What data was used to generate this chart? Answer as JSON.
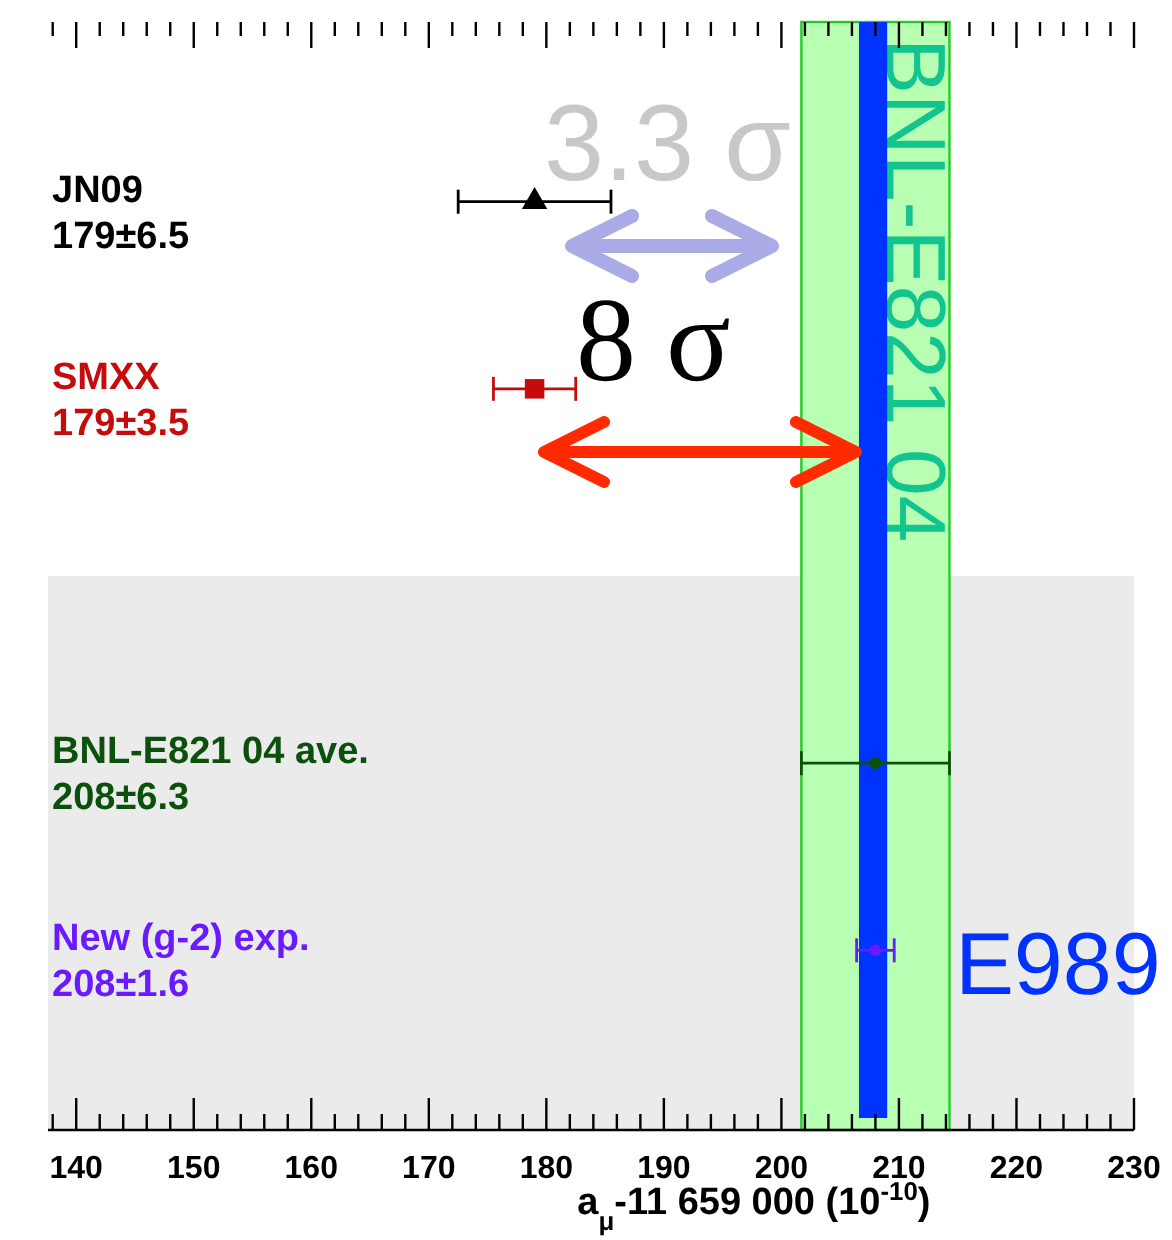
{
  "chart_data": {
    "type": "scatter",
    "orientation": "horizontal",
    "categories": [
      "JN09\n179±6.5",
      "SMXX\n179±3.5",
      null,
      "BNL-E821 04 ave.\n208±6.3",
      "New (g-2) exp.\n208±1.6"
    ],
    "series": [
      {
        "color": "#000000",
        "marker": "triangle",
        "values": [
          179,
          null,
          null,
          null,
          null
        ],
        "errors": [
          6.5,
          null,
          null,
          null,
          null
        ]
      },
      {
        "color": "#c40c0c",
        "marker": "square",
        "values": [
          null,
          179,
          null,
          null,
          null
        ],
        "errors": [
          null,
          3.5,
          null,
          null,
          null
        ]
      },
      {
        "color": "#0b500b",
        "marker": "circle",
        "values": [
          null,
          null,
          null,
          208,
          null
        ],
        "errors": [
          null,
          null,
          null,
          6.3,
          null
        ]
      },
      {
        "color": "#6a1aff",
        "marker": "circle",
        "values": [
          null,
          null,
          null,
          null,
          208
        ],
        "errors": [
          null,
          null,
          null,
          null,
          1.6
        ]
      }
    ],
    "xlim": [
      137.6,
      230
    ],
    "xticks": [
      {
        "value": 138,
        "label": null
      },
      140,
      {
        "value": 142,
        "label": null
      },
      {
        "value": 144,
        "label": null
      },
      {
        "value": 146,
        "label": null
      },
      {
        "value": 148,
        "label": null
      },
      150,
      {
        "value": 152,
        "label": null
      },
      {
        "value": 154,
        "label": null
      },
      {
        "value": 156,
        "label": null
      },
      {
        "value": 158,
        "label": null
      },
      160,
      {
        "value": 162,
        "label": null
      },
      {
        "value": 164,
        "label": null
      },
      {
        "value": 166,
        "label": null
      },
      {
        "value": 168,
        "label": null
      },
      170,
      {
        "value": 172,
        "label": null
      },
      {
        "value": 174,
        "label": null
      },
      {
        "value": 176,
        "label": null
      },
      {
        "value": 178,
        "label": null
      },
      180,
      {
        "value": 182,
        "label": null
      },
      {
        "value": 184,
        "label": null
      },
      {
        "value": 186,
        "label": null
      },
      {
        "value": 188,
        "label": null
      },
      190,
      {
        "value": 192,
        "label": null
      },
      {
        "value": 194,
        "label": null
      },
      {
        "value": 196,
        "label": null
      },
      {
        "value": 198,
        "label": null
      },
      200,
      {
        "value": 202,
        "label": null
      },
      {
        "value": 204,
        "label": null
      },
      {
        "value": 206,
        "label": null
      },
      {
        "value": 208,
        "label": null
      },
      210,
      {
        "value": 212,
        "label": null
      },
      {
        "value": 214,
        "label": null
      },
      {
        "value": 216,
        "label": null
      },
      {
        "value": 218,
        "label": null
      },
      220,
      {
        "value": 222,
        "label": null
      },
      {
        "value": 224,
        "label": null
      },
      {
        "value": 226,
        "label": null
      },
      {
        "value": 228,
        "label": null
      },
      230
    ],
    "xlabel": "a$_{μ}$-11 659 000 (10$^{-10}$)",
    "bands": [
      {
        "axis": "x",
        "from": 201.7,
        "to": 214.3,
        "label": "BNL-E821 04",
        "color": "#b9ffb3"
      },
      {
        "axis": "x",
        "from": 206.6,
        "to": 209.0,
        "label": "E989",
        "color": "#0033ff"
      }
    ],
    "annotations": [
      "3.3 σ",
      "8 σ"
    ]
  }
}
